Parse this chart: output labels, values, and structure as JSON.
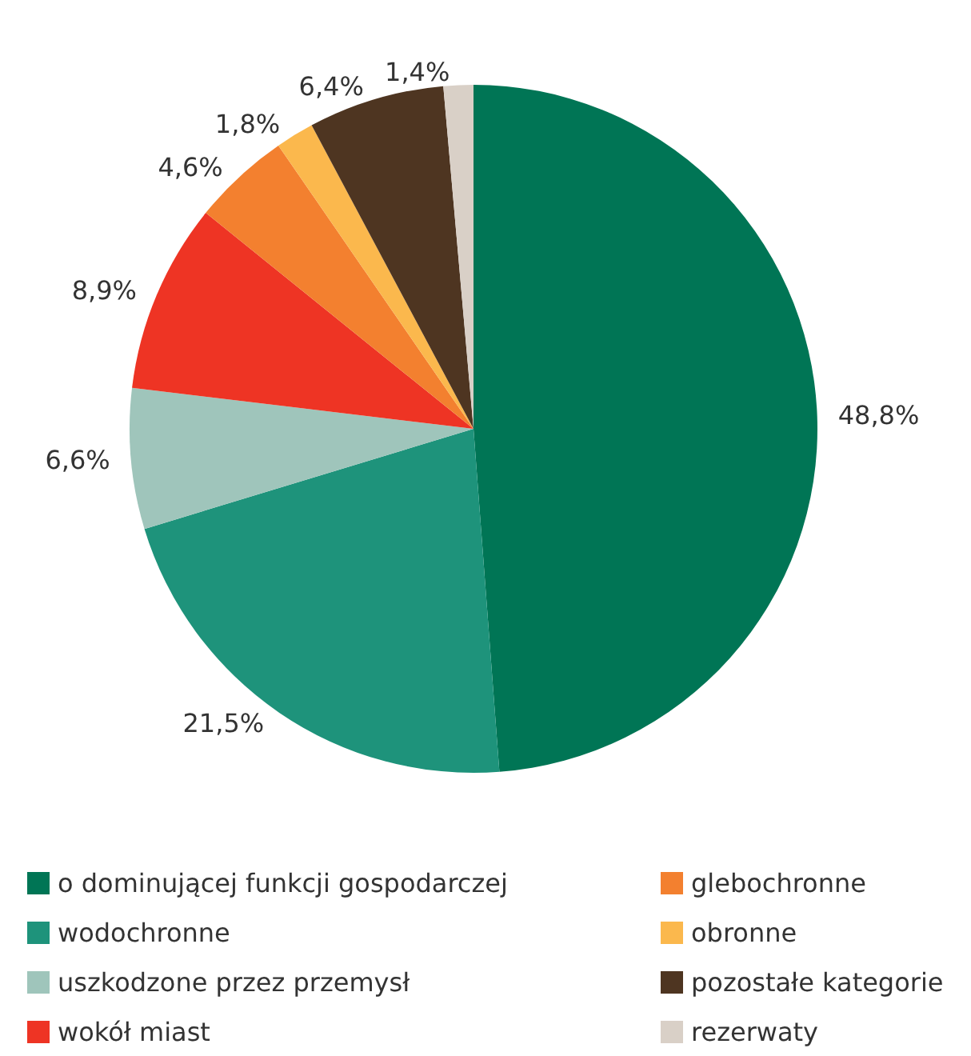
{
  "chart_data": {
    "type": "pie",
    "categories": [
      "o dominującej funkcji gospodarczej",
      "wodochronne",
      "uszkodzone przez przemysł",
      "wokół miast",
      "glebochronne",
      "obronne",
      "pozostałe kategorie",
      "rezerwaty"
    ],
    "values": [
      48.8,
      21.5,
      6.6,
      8.9,
      4.6,
      1.8,
      6.4,
      1.4
    ],
    "value_labels": [
      "48,8%",
      "21,5%",
      "6,6%",
      "8,9%",
      "4,6%",
      "1,8%",
      "6,4%",
      "1,4%"
    ],
    "colors": [
      "#007555",
      "#1e937b",
      "#9fc5bb",
      "#ee3424",
      "#f3802f",
      "#fbb84d",
      "#4e3521",
      "#d9d0c7"
    ],
    "legend": "bottom"
  }
}
